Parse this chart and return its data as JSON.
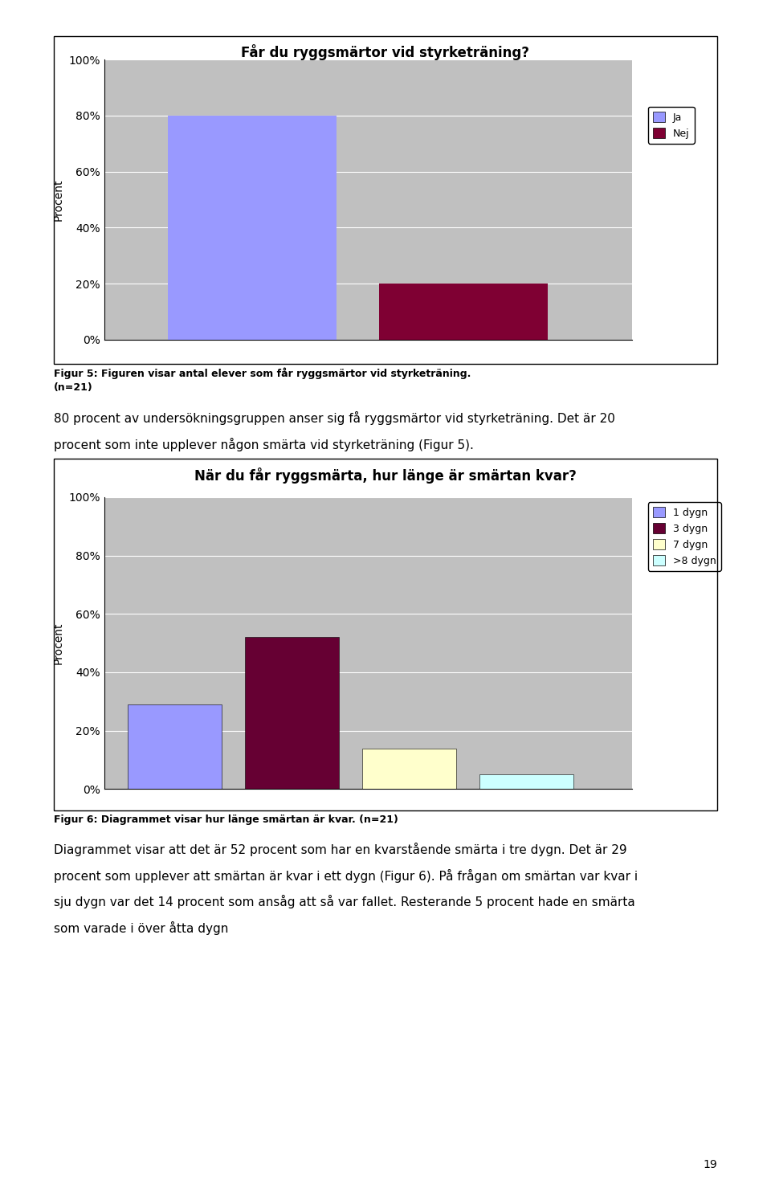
{
  "chart1": {
    "title": "Får du ryggsmärtor vid styrketräning?",
    "categories": [
      "Ja",
      "Nej"
    ],
    "values": [
      80,
      20
    ],
    "colors": [
      "#9999ff",
      "#7f0033"
    ],
    "ylabel": "Procent",
    "yticks": [
      0,
      20,
      40,
      60,
      80,
      100
    ],
    "ytick_labels": [
      "0%",
      "20%",
      "40%",
      "60%",
      "80%",
      "100%"
    ],
    "legend_labels": [
      "Ja",
      "Nej"
    ],
    "legend_colors": [
      "#9999ff",
      "#7f0033"
    ],
    "bg_color": "#c0c0c0",
    "bar_positions": [
      0.7,
      1.7
    ],
    "bar_width": 0.8
  },
  "chart1_caption_line1": "Figur 5: Figuren visar antal elever som får ryggsmärtor vid styrketräning.",
  "chart1_caption_line2": "(n=21)",
  "text1_line1": "80 procent av undersökningsgruppen anser sig få ryggsmärtor vid styrketräning. Det är 20",
  "text1_line2": "procent som inte upplever någon smärta vid styrketräning (Figur 5).",
  "chart2": {
    "title": "När du får ryggsmärta, hur länge är smärtan kvar?",
    "categories": [
      "1 dygn",
      "3 dygn",
      "7 dygn",
      ">8 dygn"
    ],
    "values": [
      29,
      52,
      14,
      5
    ],
    "colors": [
      "#9999ff",
      "#660033",
      "#ffffcc",
      "#ccffff"
    ],
    "ylabel": "Procent",
    "yticks": [
      0,
      20,
      40,
      60,
      80,
      100
    ],
    "ytick_labels": [
      "0%",
      "20%",
      "40%",
      "60%",
      "80%",
      "100%"
    ],
    "legend_labels": [
      "1 dygn",
      "3 dygn",
      "7 dygn",
      ">8 dygn"
    ],
    "legend_colors": [
      "#9999ff",
      "#660033",
      "#ffffcc",
      "#ccffff"
    ],
    "bg_color": "#c0c0c0",
    "bar_positions": [
      0.6,
      1.6,
      2.6,
      3.6
    ],
    "bar_width": 0.8
  },
  "chart2_caption": "Figur 6: Diagrammet visar hur länge smärtan är kvar. (n=21)",
  "text2_line1": "Diagrammet visar att det är 52 procent som har en kvarstående smärta i tre dygn. Det är 29",
  "text2_line2": "procent som upplever att smärtan är kvar i ett dygn (Figur 6). På frågan om smärtan var kvar i",
  "text2_line3": "sju dygn var det 14 procent som ansåg att så var fallet. Resterande 5 procent hade en smärta",
  "text2_line4": "som varade i över åtta dygn",
  "page_number": "19",
  "bg_white": "#ffffff",
  "text_color": "#000000"
}
